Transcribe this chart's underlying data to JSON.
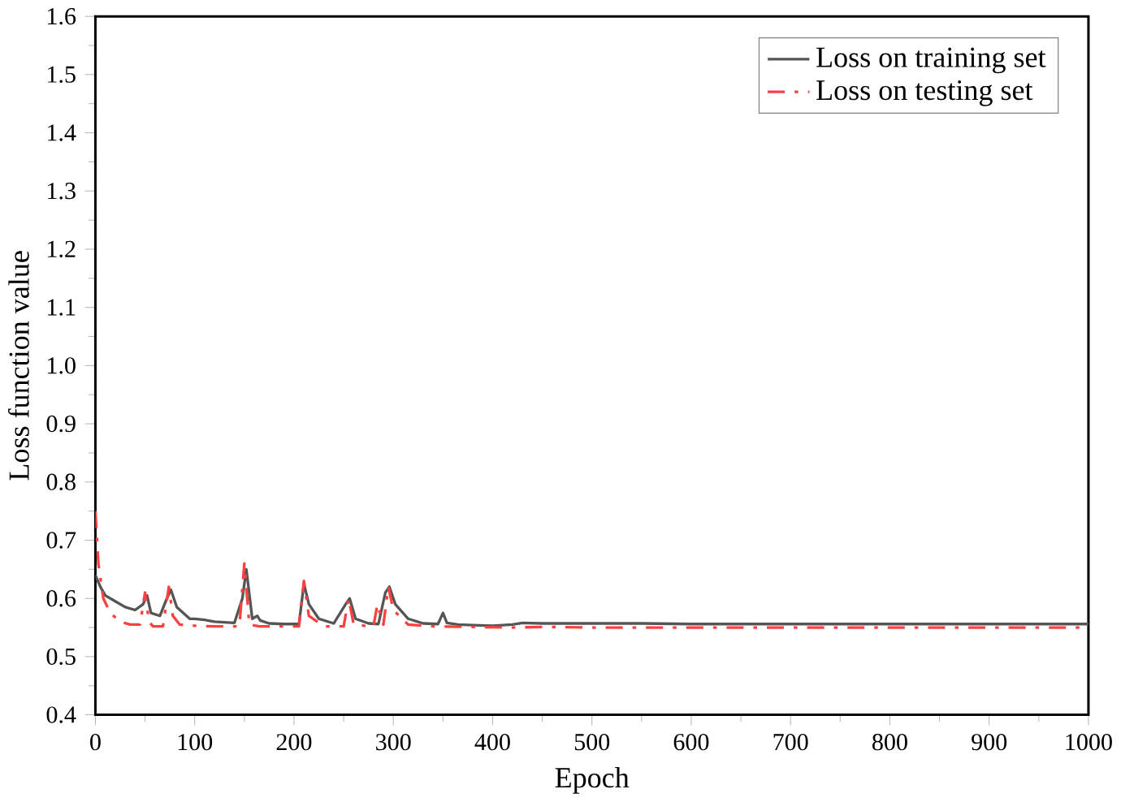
{
  "chart_data": {
    "type": "line",
    "xlabel": "Epoch",
    "ylabel": "Loss function value",
    "xlim": [
      0,
      1000
    ],
    "ylim": [
      0.4,
      1.6
    ],
    "xticks": [
      0,
      100,
      200,
      300,
      400,
      500,
      600,
      700,
      800,
      900,
      1000
    ],
    "yticks": [
      0.4,
      0.5,
      0.6,
      0.7,
      0.8,
      0.9,
      {
        "value": 1.0,
        "label": "1.0"
      },
      1.1,
      1.2,
      1.3,
      1.4,
      1.5,
      1.6
    ],
    "legend": "top right",
    "marker": "none",
    "grid": false,
    "series": [
      {
        "name": "Loss on training set",
        "color": "#555555",
        "line_style": "solid",
        "x": [
          0,
          5,
          10,
          20,
          30,
          40,
          48,
          52,
          56,
          65,
          72,
          76,
          82,
          95,
          100,
          110,
          120,
          140,
          148,
          152,
          158,
          163,
          166,
          175,
          190,
          205,
          210,
          215,
          225,
          240,
          252,
          256,
          262,
          275,
          285,
          292,
          296,
          302,
          315,
          330,
          345,
          350,
          354,
          365,
          380,
          400,
          420,
          430,
          450,
          500,
          550,
          600,
          650,
          700,
          750,
          800,
          850,
          900,
          950,
          1000
        ],
        "values": [
          0.64,
          0.62,
          0.605,
          0.595,
          0.585,
          0.58,
          0.59,
          0.605,
          0.575,
          0.57,
          0.6,
          0.615,
          0.585,
          0.565,
          0.565,
          0.563,
          0.56,
          0.558,
          0.6,
          0.65,
          0.565,
          0.57,
          0.562,
          0.557,
          0.556,
          0.556,
          0.625,
          0.59,
          0.565,
          0.557,
          0.59,
          0.6,
          0.565,
          0.557,
          0.556,
          0.61,
          0.62,
          0.59,
          0.565,
          0.557,
          0.556,
          0.575,
          0.558,
          0.555,
          0.554,
          0.553,
          0.555,
          0.558,
          0.557,
          0.557,
          0.557,
          0.556,
          0.556,
          0.556,
          0.556,
          0.556,
          0.556,
          0.556,
          0.556,
          0.556
        ]
      },
      {
        "name": "Loss on testing set",
        "color": "#ff4040",
        "line_style": "dashed",
        "x": [
          0,
          3,
          8,
          15,
          25,
          35,
          45,
          50,
          54,
          58,
          68,
          74,
          78,
          85,
          100,
          120,
          145,
          150,
          155,
          165,
          190,
          205,
          210,
          215,
          230,
          250,
          255,
          260,
          275,
          280,
          284,
          290,
          295,
          300,
          315,
          340,
          380,
          420,
          450,
          500,
          550,
          600,
          650,
          700,
          750,
          800,
          850,
          900,
          950,
          1000
        ],
        "values": [
          0.75,
          0.66,
          0.6,
          0.575,
          0.56,
          0.555,
          0.555,
          0.61,
          0.56,
          0.552,
          0.552,
          0.62,
          0.57,
          0.555,
          0.553,
          0.552,
          0.552,
          0.66,
          0.555,
          0.552,
          0.552,
          0.552,
          0.63,
          0.57,
          0.552,
          0.552,
          0.6,
          0.556,
          0.552,
          0.552,
          0.59,
          0.555,
          0.62,
          0.58,
          0.555,
          0.552,
          0.551,
          0.55,
          0.551,
          0.55,
          0.55,
          0.55,
          0.55,
          0.55,
          0.55,
          0.55,
          0.55,
          0.55,
          0.55,
          0.55
        ]
      }
    ]
  }
}
